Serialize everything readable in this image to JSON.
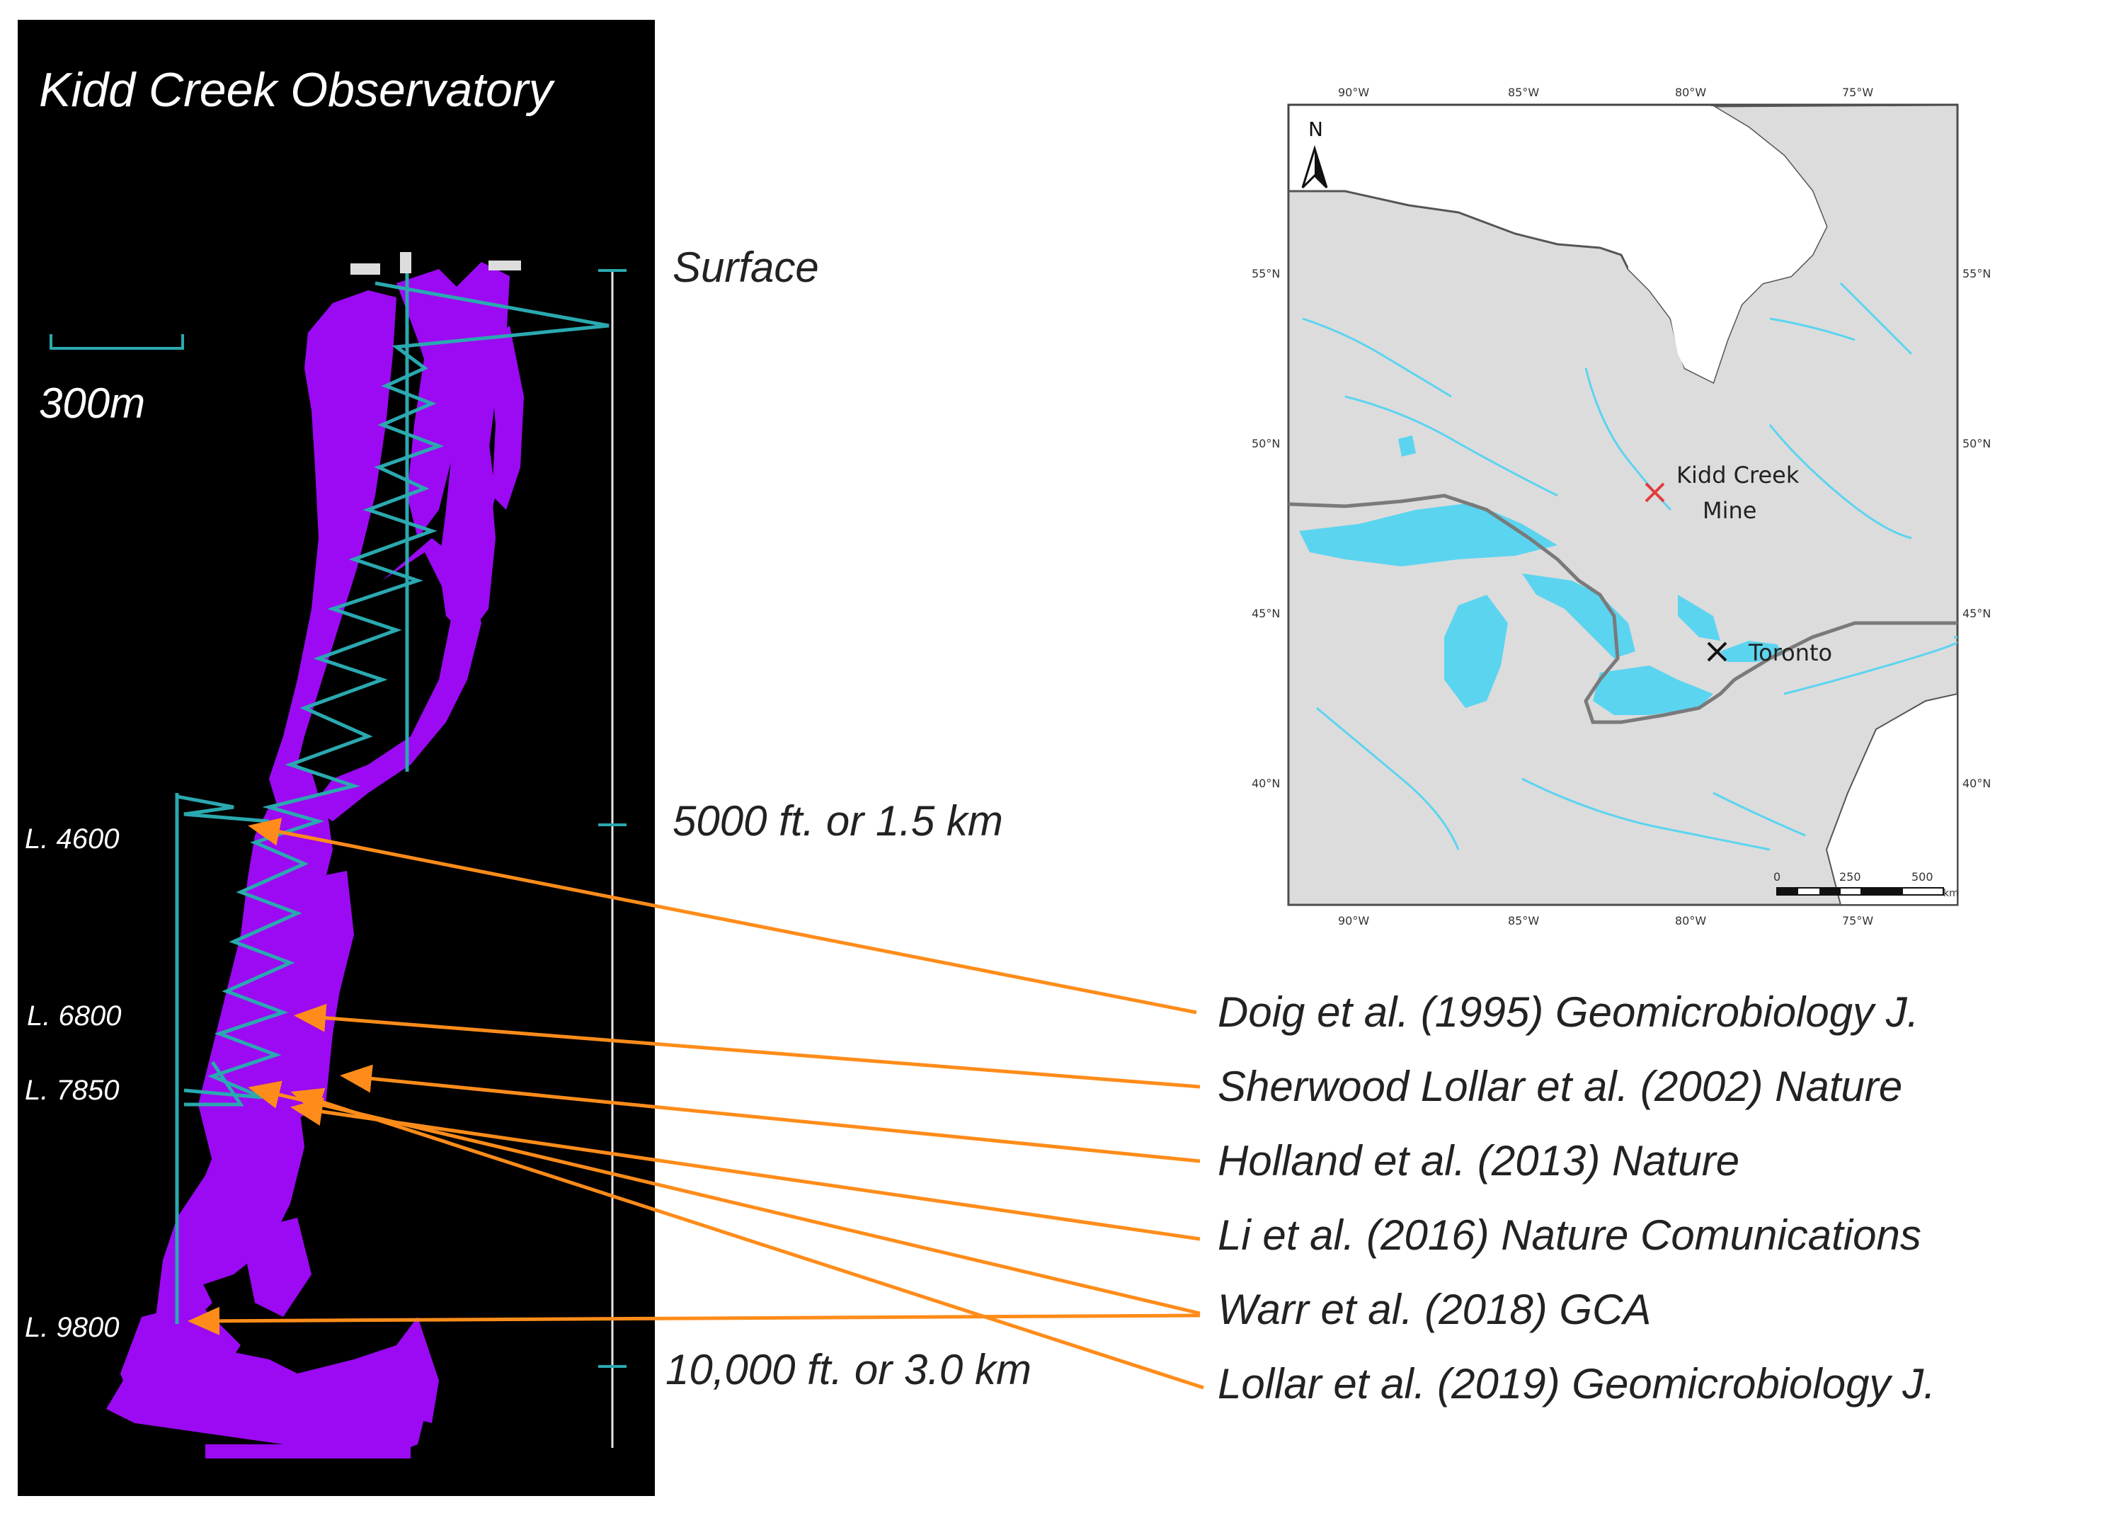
{
  "observatory": {
    "title": "Kidd Creek Observatory",
    "scale_bar_label": "300m",
    "depth_markers": {
      "surface": "Surface",
      "mid": "5000 ft. or 1.5 km",
      "deep": "10,000 ft. or 3.0 km"
    },
    "levels": [
      "L. 4600",
      "L. 6800",
      "L. 7850",
      "L. 9800"
    ]
  },
  "references": [
    "Doig et al. (1995) Geomicrobiology J.",
    "Sherwood Lollar et al. (2002) Nature",
    "Holland et al. (2013) Nature",
    "Li et al. (2016) Nature Comunications",
    "Warr et al. (2018) GCA",
    "Lollar et al. (2019) Geomicrobiology J."
  ],
  "map": {
    "north_label": "N",
    "lon_labels": [
      "90°W",
      "85°W",
      "80°W",
      "75°W"
    ],
    "lat_labels": [
      "55°N",
      "50°N",
      "45°N",
      "40°N"
    ],
    "places": {
      "kidd_creek_line1": "Kidd Creek",
      "kidd_creek_line2": "Mine",
      "toronto": "Toronto"
    },
    "scale": {
      "ticks": [
        "0",
        "250",
        "500"
      ],
      "unit": "km"
    }
  },
  "colors": {
    "orebody": "#9b0af2",
    "tunnel": "#2aa9b0",
    "arrow": "#ff8c1a",
    "water": "#5bd4f0",
    "land": "#dcdcdc",
    "border": "#7a7a7a"
  }
}
